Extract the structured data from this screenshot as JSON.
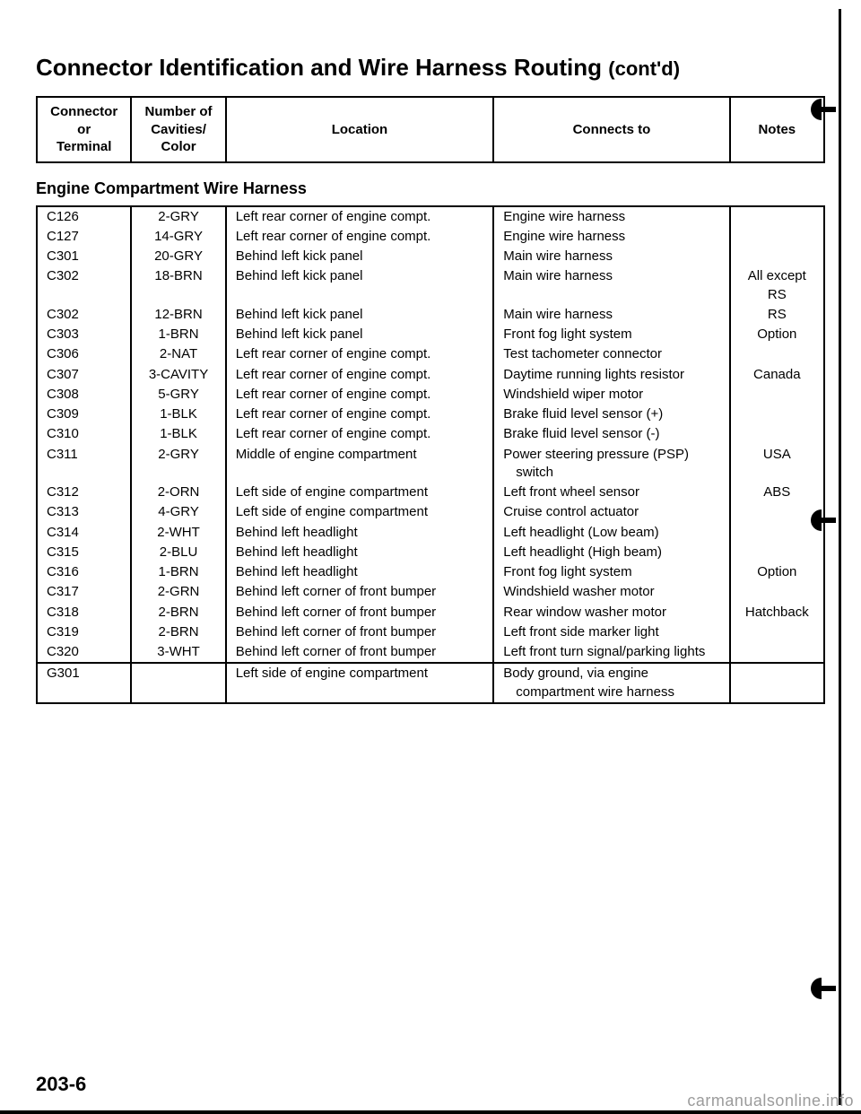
{
  "title_main": "Connector Identification and Wire Harness Routing",
  "title_contd": "(cont'd)",
  "header": {
    "connector": "Connector\nor\nTerminal",
    "cavities": "Number of\nCavities/\nColor",
    "location": "Location",
    "connects": "Connects to",
    "notes": "Notes"
  },
  "section_title": "Engine Compartment Wire Harness",
  "rows": [
    {
      "c": "C126",
      "cav": "2-GRY",
      "loc": "Left rear corner of engine compt.",
      "con": "Engine wire harness",
      "note": ""
    },
    {
      "c": "C127",
      "cav": "14-GRY",
      "loc": "Left rear corner of engine compt.",
      "con": "Engine wire harness",
      "note": ""
    },
    {
      "c": "C301",
      "cav": "20-GRY",
      "loc": "Behind left kick panel",
      "con": "Main wire harness",
      "note": ""
    },
    {
      "c": "C302",
      "cav": "18-BRN",
      "loc": "Behind left kick panel",
      "con": "Main wire harness",
      "note": "All except RS"
    },
    {
      "c": "C302",
      "cav": "12-BRN",
      "loc": "Behind left kick panel",
      "con": "Main wire harness",
      "note": "RS"
    },
    {
      "c": "C303",
      "cav": "1-BRN",
      "loc": "Behind left kick panel",
      "con": "Front fog light system",
      "note": "Option"
    },
    {
      "c": "C306",
      "cav": "2-NAT",
      "loc": "Left rear corner of engine compt.",
      "con": "Test tachometer connector",
      "note": ""
    },
    {
      "c": "C307",
      "cav": "3-CAVITY",
      "loc": "Left rear corner of engine compt.",
      "con": "Daytime running lights resistor",
      "note": "Canada"
    },
    {
      "c": "C308",
      "cav": "5-GRY",
      "loc": "Left rear corner of engine compt.",
      "con": "Windshield wiper motor",
      "note": ""
    },
    {
      "c": "C309",
      "cav": "1-BLK",
      "loc": "Left rear corner of engine compt.",
      "con": "Brake fluid level sensor (+)",
      "note": ""
    },
    {
      "c": "C310",
      "cav": "1-BLK",
      "loc": "Left rear corner of engine compt.",
      "con": "Brake fluid level sensor (-)",
      "note": ""
    },
    {
      "c": "C311",
      "cav": "2-GRY",
      "loc": "Middle of engine compartment",
      "con": "Power steering pressure (PSP) switch",
      "note": "USA",
      "con_indent": "switch",
      "con_main": "Power steering pressure (PSP)"
    },
    {
      "c": "C312",
      "cav": "2-ORN",
      "loc": "Left side of engine compartment",
      "con": "Left front wheel sensor",
      "note": "ABS"
    },
    {
      "c": "C313",
      "cav": "4-GRY",
      "loc": "Left side of engine compartment",
      "con": "Cruise control actuator",
      "note": ""
    },
    {
      "c": "C314",
      "cav": "2-WHT",
      "loc": "Behind left headlight",
      "con": "Left headlight (Low beam)",
      "note": ""
    },
    {
      "c": "C315",
      "cav": "2-BLU",
      "loc": "Behind left headlight",
      "con": "Left headlight (High beam)",
      "note": ""
    },
    {
      "c": "C316",
      "cav": "1-BRN",
      "loc": "Behind left headlight",
      "con": "Front fog light system",
      "note": "Option"
    },
    {
      "c": "C317",
      "cav": "2-GRN",
      "loc": "Behind left corner of front bumper",
      "con": "Windshield washer motor",
      "note": ""
    },
    {
      "c": "C318",
      "cav": "2-BRN",
      "loc": "Behind left corner of front bumper",
      "con": "Rear window washer motor",
      "note": "Hatchback"
    },
    {
      "c": "C319",
      "cav": "2-BRN",
      "loc": "Behind left corner of front bumper",
      "con": "Left front side marker light",
      "note": ""
    },
    {
      "c": "C320",
      "cav": "3-WHT",
      "loc": "Behind left corner of front bumper",
      "con": "Left front turn signal/parking lights",
      "note": ""
    }
  ],
  "ground_row": {
    "c": "G301",
    "cav": "",
    "loc": "Left side of engine compartment",
    "con_main": "Body ground, via engine",
    "con_indent": "compartment wire harness",
    "note": ""
  },
  "page_number": "203-6",
  "watermark": "carmanualsonline.info"
}
